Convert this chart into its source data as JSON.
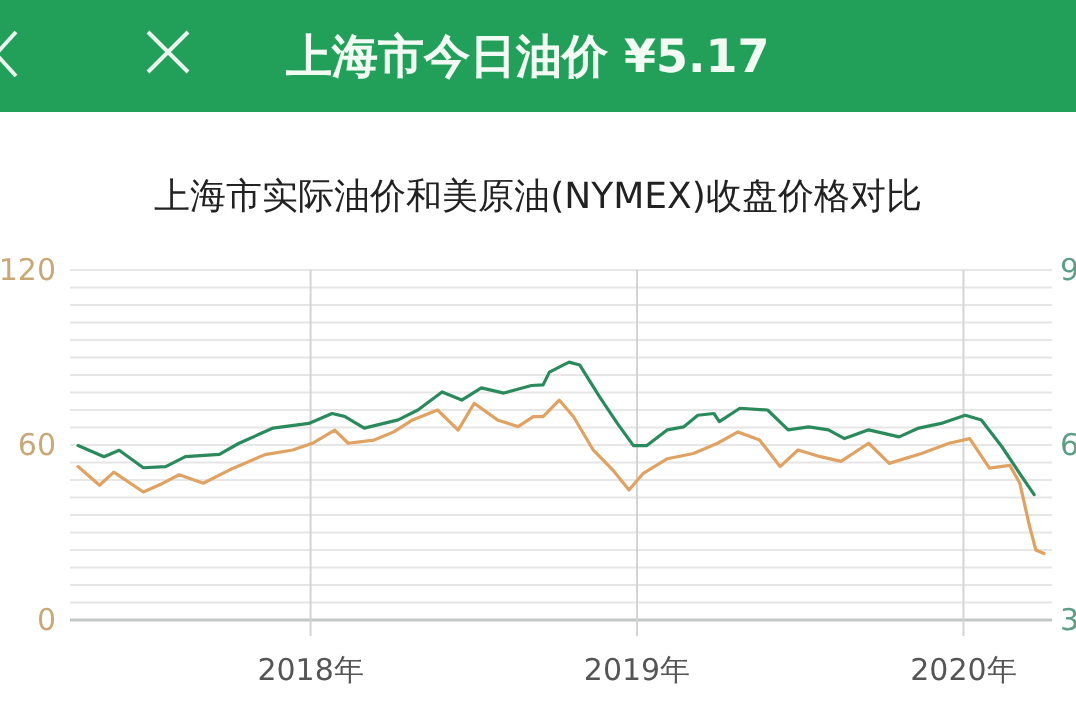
{
  "chart_data": {
    "type": "line",
    "title": "上海市今日油价 ¥5.17",
    "subtitle": "上海市实际油价和美原油(NYMEX)收盘价格对比",
    "xlim": [
      "2017-04-07",
      "2020-04-09"
    ],
    "xticks": [
      {
        "value": "2018-01-01",
        "label": "2018年"
      },
      {
        "value": "2019-01-01",
        "label": "2019年"
      },
      {
        "value": "2020-01-01",
        "label": "2020年"
      }
    ],
    "ylim": [
      0,
      120
    ],
    "yticks": [
      0,
      {
        "value": 6,
        "label": null
      },
      {
        "value": 12,
        "label": null
      },
      {
        "value": 18,
        "label": null
      },
      {
        "value": 24,
        "label": null
      },
      {
        "value": 30,
        "label": null
      },
      {
        "value": 36,
        "label": null
      },
      {
        "value": 42,
        "label": null
      },
      {
        "value": 48,
        "label": null
      },
      {
        "value": 54,
        "label": null
      },
      60,
      {
        "value": 66,
        "label": null
      },
      {
        "value": 72,
        "label": null
      },
      {
        "value": 78,
        "label": null
      },
      {
        "value": 84,
        "label": null
      },
      {
        "value": 90,
        "label": null
      },
      {
        "value": 96,
        "label": null
      },
      {
        "value": 102,
        "label": null
      },
      {
        "value": 108,
        "label": null
      },
      {
        "value": 114,
        "label": null
      },
      120
    ],
    "y2lim": [
      3,
      9
    ],
    "y2ticks": [
      3,
      6,
      9
    ],
    "grid": true,
    "series": [
      {
        "color": "#e0a262",
        "x": [
          "2017-04-16",
          "2017-05-10",
          "2017-05-26",
          "2017-06-28",
          "2017-07-20",
          "2017-08-07",
          "2017-09-03",
          "2017-10-02",
          "2017-11-11",
          "2017-12-12",
          "2018-01-03",
          "2018-01-28",
          "2018-02-12",
          "2018-03-13",
          "2018-04-04",
          "2018-04-25",
          "2018-05-23",
          "2018-06-15",
          "2018-07-03",
          "2018-07-29",
          "2018-08-21",
          "2018-09-07",
          "2018-09-18",
          "2018-10-06",
          "2018-10-22",
          "2018-11-13",
          "2018-12-05",
          "2018-12-23",
          "2019-01-08",
          "2019-02-04",
          "2019-03-05",
          "2019-04-01",
          "2019-04-24",
          "2019-05-18",
          "2019-06-10",
          "2019-06-30",
          "2019-07-25",
          "2019-08-17",
          "2019-09-17",
          "2019-10-10",
          "2019-11-15",
          "2019-12-16",
          "2020-01-08",
          "2020-01-30",
          "2020-02-22",
          "2020-03-04",
          "2020-03-15",
          "2020-03-22",
          "2020-03-31"
        ],
        "values": [
          52.6,
          46.2,
          50.7,
          43.9,
          46.9,
          49.8,
          46.9,
          51.4,
          56.7,
          58.3,
          60.6,
          65.1,
          60.6,
          61.7,
          64.5,
          68.6,
          72.0,
          65.1,
          74.3,
          68.6,
          66.3,
          69.7,
          69.7,
          75.4,
          69.7,
          58.3,
          51.4,
          44.6,
          50.3,
          55.3,
          57.1,
          60.6,
          64.5,
          61.7,
          52.6,
          58.3,
          56.0,
          54.4,
          60.6,
          53.7,
          57.1,
          60.6,
          62.2,
          52.1,
          53.0,
          46.9,
          32.0,
          24.0,
          22.8
        ]
      },
      {
        "color": "#2b8a5c",
        "axis": "y2",
        "x": [
          "2017-04-16",
          "2017-05-15",
          "2017-06-01",
          "2017-06-28",
          "2017-07-23",
          "2017-08-14",
          "2017-09-21",
          "2017-10-13",
          "2017-11-20",
          "2017-12-30",
          "2018-01-25",
          "2018-02-08",
          "2018-03-02",
          "2018-04-09",
          "2018-05-01",
          "2018-05-28",
          "2018-06-19",
          "2018-07-11",
          "2018-08-05",
          "2018-09-05",
          "2018-09-18",
          "2018-09-25",
          "2018-10-17",
          "2018-10-29",
          "2018-11-20",
          "2018-12-10",
          "2018-12-28",
          "2019-01-12",
          "2019-02-04",
          "2019-02-22",
          "2019-03-10",
          "2019-03-28",
          "2019-04-03",
          "2019-04-26",
          "2019-05-27",
          "2019-06-19",
          "2019-07-12",
          "2019-08-03",
          "2019-08-21",
          "2019-09-17",
          "2019-10-21",
          "2019-11-12",
          "2019-12-07",
          "2020-01-03",
          "2020-01-21",
          "2020-02-13",
          "2020-03-04",
          "2020-03-20"
        ],
        "values": [
          5.99,
          5.8,
          5.91,
          5.61,
          5.63,
          5.8,
          5.84,
          6.03,
          6.29,
          6.37,
          6.54,
          6.49,
          6.29,
          6.43,
          6.6,
          6.91,
          6.77,
          6.98,
          6.89,
          7.02,
          7.03,
          7.25,
          7.42,
          7.37,
          6.83,
          6.37,
          5.99,
          5.99,
          6.26,
          6.31,
          6.51,
          6.54,
          6.4,
          6.63,
          6.6,
          6.26,
          6.31,
          6.26,
          6.11,
          6.26,
          6.14,
          6.29,
          6.37,
          6.51,
          6.43,
          5.97,
          5.51,
          5.15
        ]
      }
    ]
  }
}
